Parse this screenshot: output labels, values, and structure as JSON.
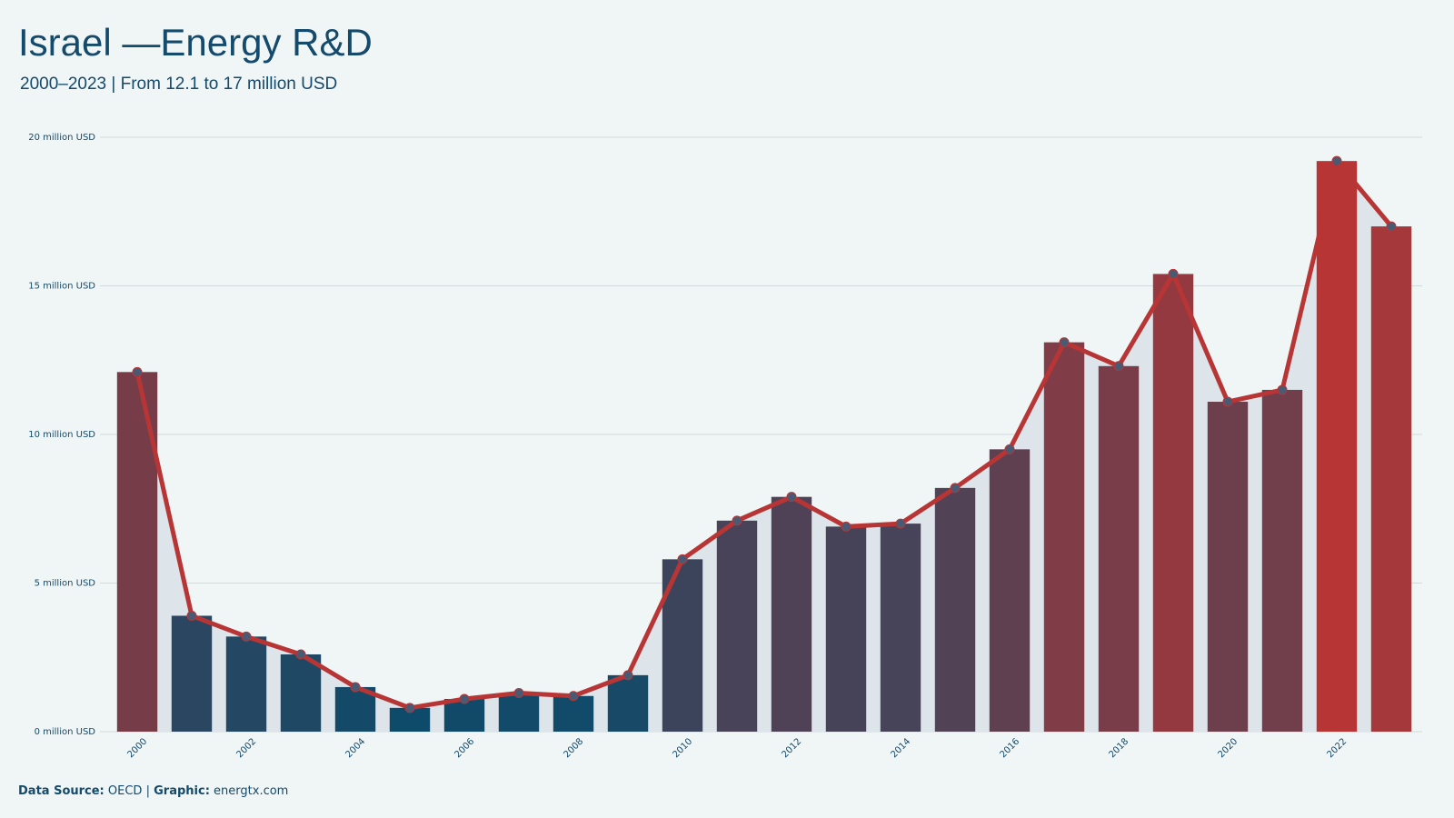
{
  "chart_data": {
    "type": "bar",
    "title": "Israel —Energy R&D",
    "subtitle": "2000–2023 | From 12.1 to 17 million USD",
    "categories": [
      "2000",
      null,
      "2002",
      null,
      "2004",
      null,
      "2006",
      null,
      "2008",
      null,
      "2010",
      null,
      "2012",
      null,
      "2014",
      null,
      "2016",
      null,
      "2018",
      null,
      "2020",
      null,
      "2022",
      null
    ],
    "values": [
      12.1,
      3.9,
      3.2,
      2.6,
      1.5,
      0.8,
      1.1,
      1.3,
      1.2,
      1.9,
      5.8,
      7.1,
      7.9,
      6.9,
      7.0,
      8.2,
      9.5,
      13.1,
      12.3,
      15.4,
      11.1,
      11.5,
      19.2,
      17.0
    ],
    "color_scale": [
      "#0e4a6a",
      "#b83535"
    ],
    "line_color": "#b83535",
    "marker_color": "#4a5a72",
    "area_color": "#dde4ea",
    "ylim": [
      0,
      20
    ],
    "yticks": [
      {
        "value": 0,
        "label": "0 million USD"
      },
      {
        "value": 5,
        "label": "5 million USD"
      },
      {
        "value": 10,
        "label": "10 million USD"
      },
      {
        "value": 15,
        "label": "15 million USD"
      },
      {
        "value": 20,
        "label": "20 million USD"
      }
    ],
    "grid": true,
    "footer": {
      "source_label": "Data Source:",
      "source": "OECD",
      "graphic_label": "Graphic:",
      "graphic": "energtx.com"
    }
  }
}
